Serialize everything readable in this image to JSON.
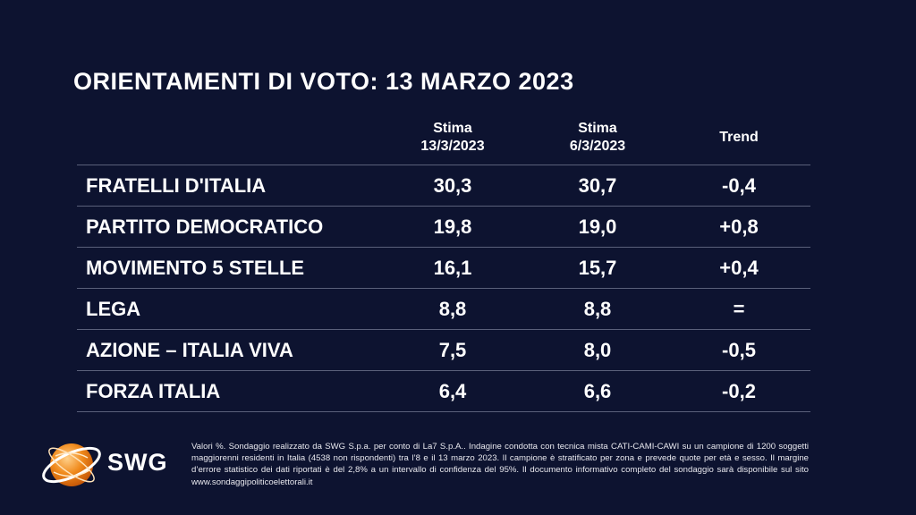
{
  "title": "ORIENTAMENTI DI VOTO: 13 MARZO 2023",
  "headers": {
    "col1_line1": "Stima",
    "col1_line2": "13/3/2023",
    "col2_line1": "Stima",
    "col2_line2": "6/3/2023",
    "col3": "Trend"
  },
  "rows": [
    {
      "party": "FRATELLI D'ITALIA",
      "estimate_current": "30,3",
      "estimate_previous": "30,7",
      "trend": "-0,4"
    },
    {
      "party": "PARTITO DEMOCRATICO",
      "estimate_current": "19,8",
      "estimate_previous": "19,0",
      "trend": "+0,8"
    },
    {
      "party": "MOVIMENTO 5 STELLE",
      "estimate_current": "16,1",
      "estimate_previous": "15,7",
      "trend": "+0,4"
    },
    {
      "party": "LEGA",
      "estimate_current": "8,8",
      "estimate_previous": "8,8",
      "trend": "="
    },
    {
      "party": "AZIONE – ITALIA VIVA",
      "estimate_current": "7,5",
      "estimate_previous": "8,0",
      "trend": "-0,5"
    },
    {
      "party": "FORZA ITALIA",
      "estimate_current": "6,4",
      "estimate_previous": "6,6",
      "trend": "-0,2"
    }
  ],
  "logo": {
    "text": "SWG",
    "icon": "globe-logo-icon",
    "color": "#f08a1c"
  },
  "footnote": "Valori %. Sondaggio realizzato da SWG S.p.a. per conto di La7 S.p.A.. Indagine condotta con tecnica mista CATI-CAMI-CAWI su un campione di 1200 soggetti maggiorenni residenti in Italia (4538 non rispondenti) tra l’8 e il 13 marzo 2023. Il campione è stratificato per zona e prevede quote per età e sesso. Il margine d’errore statistico dei dati riportati è del 2,8% a un intervallo di confidenza del 95%. Il documento informativo completo del sondaggio sarà disponibile sul sito www.sondaggipoliticoelettorali.it"
}
